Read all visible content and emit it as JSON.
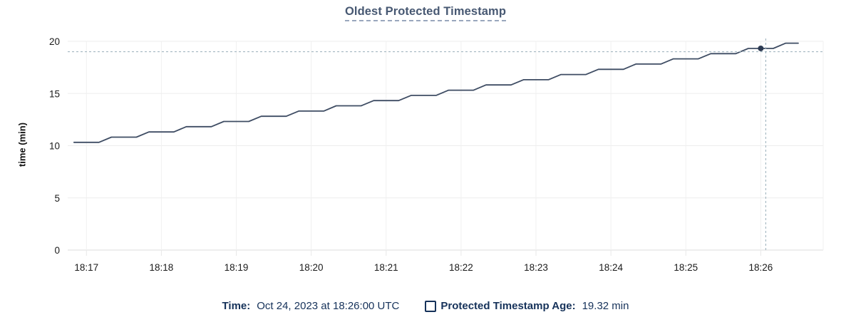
{
  "page": {
    "background": "#ffffff"
  },
  "chart_data": {
    "type": "line",
    "title": "Oldest Protected Timestamp",
    "ylabel": "time (min)",
    "xlabel": "",
    "ylim": [
      0,
      20
    ],
    "y_ticks": [
      0,
      5,
      10,
      15,
      20
    ],
    "x_tick_labels": [
      "18:17",
      "18:18",
      "18:19",
      "18:20",
      "18:21",
      "18:22",
      "18:23",
      "18:24",
      "18:25",
      "18:26"
    ],
    "x_tick_seconds": [
      0,
      60,
      120,
      180,
      240,
      300,
      360,
      420,
      480,
      540
    ],
    "x_domain_seconds": [
      -15,
      590
    ],
    "grid": true,
    "legend_position": "bottom-center",
    "series": [
      {
        "name": "Protected Timestamp Age",
        "color": "#3e4c63",
        "sample_start_seconds": -10,
        "sample_interval_seconds": 10,
        "values_min": [
          10.32,
          10.32,
          10.32,
          10.82,
          10.82,
          10.82,
          11.32,
          11.32,
          11.32,
          11.82,
          11.82,
          11.82,
          12.32,
          12.32,
          12.32,
          12.82,
          12.82,
          12.82,
          13.32,
          13.32,
          13.32,
          13.82,
          13.82,
          13.82,
          14.32,
          14.32,
          14.32,
          14.82,
          14.82,
          14.82,
          15.32,
          15.32,
          15.32,
          15.82,
          15.82,
          15.82,
          16.32,
          16.32,
          16.32,
          16.82,
          16.82,
          16.82,
          17.32,
          17.32,
          17.32,
          17.82,
          17.82,
          17.82,
          18.32,
          18.32,
          18.32,
          18.82,
          18.82,
          18.82,
          19.32,
          19.32,
          19.32,
          19.82,
          19.82
        ]
      }
    ],
    "hover": {
      "crosshair_time_seconds": 544,
      "crosshair_value_min": 19.0,
      "point_time_seconds": 540,
      "point_value_min": 19.32,
      "crosshair_color": "#98aeb9",
      "dot_color": "#2c3a52"
    },
    "colors": {
      "grid_h": "#ededed",
      "grid_v": "#f0f0f0",
      "axis_line": "#dcdcdc",
      "tick_mark": "#e8e8e8",
      "tick_text": "#1a1a1a",
      "title_text": "#475872",
      "axis_label_text": "#111111"
    }
  },
  "legend": {
    "time_label": "Time:",
    "time_value": "Oct 24, 2023 at 18:26:00 UTC",
    "series_label": "Protected Timestamp Age:",
    "series_value": "19.32 min",
    "text_color": "#16325a"
  }
}
